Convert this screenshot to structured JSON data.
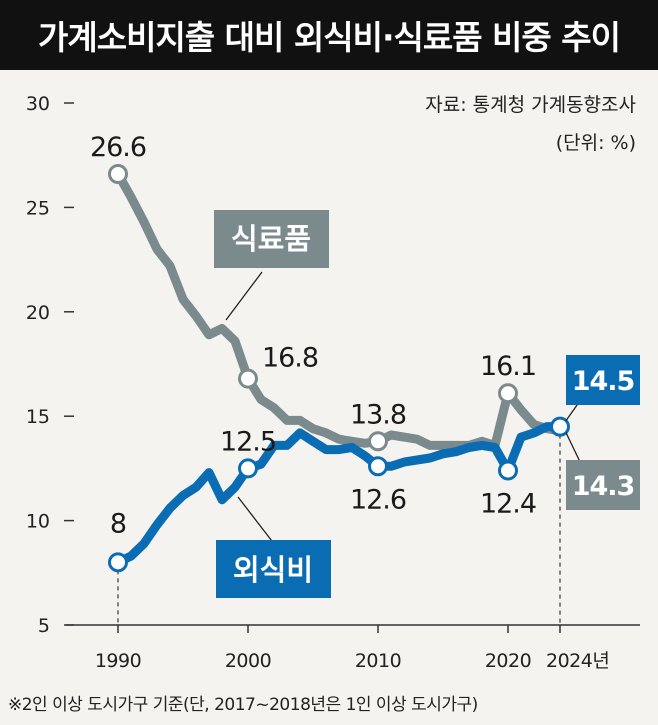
{
  "header": {
    "title": "가계소비지출 대비 외식비·식료품 비중 추이"
  },
  "meta": {
    "source": "자료: 통계청 가계동향조사",
    "unit": "(단위: %)",
    "footnote": "※2인 이상 도시가구 기준(단, 2017~2018년은 1인 이상 도시가구)"
  },
  "colors": {
    "food": "#7b8a8d",
    "dining": "#0a6db4",
    "background": "#f4f3ef"
  },
  "chart_data": {
    "type": "line",
    "title": "가계소비지출 대비 외식비·식료품 비중 추이",
    "ylim": [
      5,
      30
    ],
    "yticks": [
      "30",
      "25",
      "20",
      "15",
      "10",
      "5"
    ],
    "xticks": [
      "1990",
      "2000",
      "2010",
      "2020",
      "2024년"
    ],
    "series": [
      {
        "name": "식료품",
        "key": "food",
        "x": [
          1990,
          1991,
          1992,
          1993,
          1994,
          1995,
          1996,
          1997,
          1998,
          1999,
          2000,
          2001,
          2002,
          2003,
          2004,
          2005,
          2006,
          2007,
          2008,
          2009,
          2010,
          2011,
          2012,
          2013,
          2014,
          2015,
          2016,
          2017,
          2018,
          2019,
          2020,
          2021,
          2022,
          2023,
          2024
        ],
        "values": [
          26.6,
          25.5,
          24.3,
          23.0,
          22.2,
          20.6,
          19.8,
          18.9,
          19.2,
          18.6,
          16.8,
          15.8,
          15.4,
          14.8,
          14.8,
          14.4,
          14.2,
          13.9,
          13.8,
          13.7,
          13.8,
          14.1,
          14.0,
          13.9,
          13.6,
          13.6,
          13.6,
          13.6,
          13.8,
          13.6,
          16.1,
          15.3,
          14.6,
          14.4,
          14.3
        ]
      },
      {
        "name": "외식비",
        "key": "dining",
        "x": [
          1990,
          1991,
          1992,
          1993,
          1994,
          1995,
          1996,
          1997,
          1998,
          1999,
          2000,
          2001,
          2002,
          2003,
          2004,
          2005,
          2006,
          2007,
          2008,
          2009,
          2010,
          2011,
          2012,
          2013,
          2014,
          2015,
          2016,
          2017,
          2018,
          2019,
          2020,
          2021,
          2022,
          2023,
          2024
        ],
        "values": [
          8.0,
          8.3,
          8.9,
          9.8,
          10.6,
          11.2,
          11.6,
          12.3,
          11.0,
          11.6,
          12.5,
          12.7,
          13.6,
          13.6,
          14.2,
          13.8,
          13.4,
          13.4,
          13.5,
          13.1,
          12.6,
          12.6,
          12.8,
          12.9,
          13.0,
          13.2,
          13.3,
          13.5,
          13.6,
          13.5,
          12.4,
          14.0,
          14.2,
          14.5,
          14.5
        ]
      }
    ],
    "markers": [
      {
        "series": "food",
        "x": 1990,
        "label": "26.6"
      },
      {
        "series": "food",
        "x": 2000,
        "label": "16.8"
      },
      {
        "series": "food",
        "x": 2010,
        "label": "13.8"
      },
      {
        "series": "food",
        "x": 2020,
        "label": "16.1"
      },
      {
        "series": "food",
        "x": 2024,
        "label": "14.3"
      },
      {
        "series": "dining",
        "x": 1990,
        "label": "8"
      },
      {
        "series": "dining",
        "x": 2000,
        "label": "12.5"
      },
      {
        "series": "dining",
        "x": 2010,
        "label": "12.6"
      },
      {
        "series": "dining",
        "x": 2020,
        "label": "12.4"
      },
      {
        "series": "dining",
        "x": 2024,
        "label": "14.5"
      }
    ],
    "series_labels": {
      "food": "식료품",
      "dining": "외식비"
    }
  }
}
